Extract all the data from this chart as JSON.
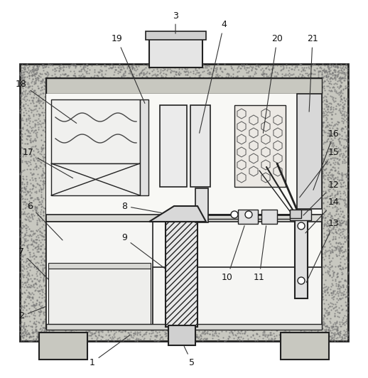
{
  "bg_color": "#ffffff",
  "wall_color": "#c8c8c0",
  "line_color": "#222222",
  "inner_bg": "#f5f5f2",
  "figsize": [
    5.18,
    5.32
  ],
  "dpi": 100
}
